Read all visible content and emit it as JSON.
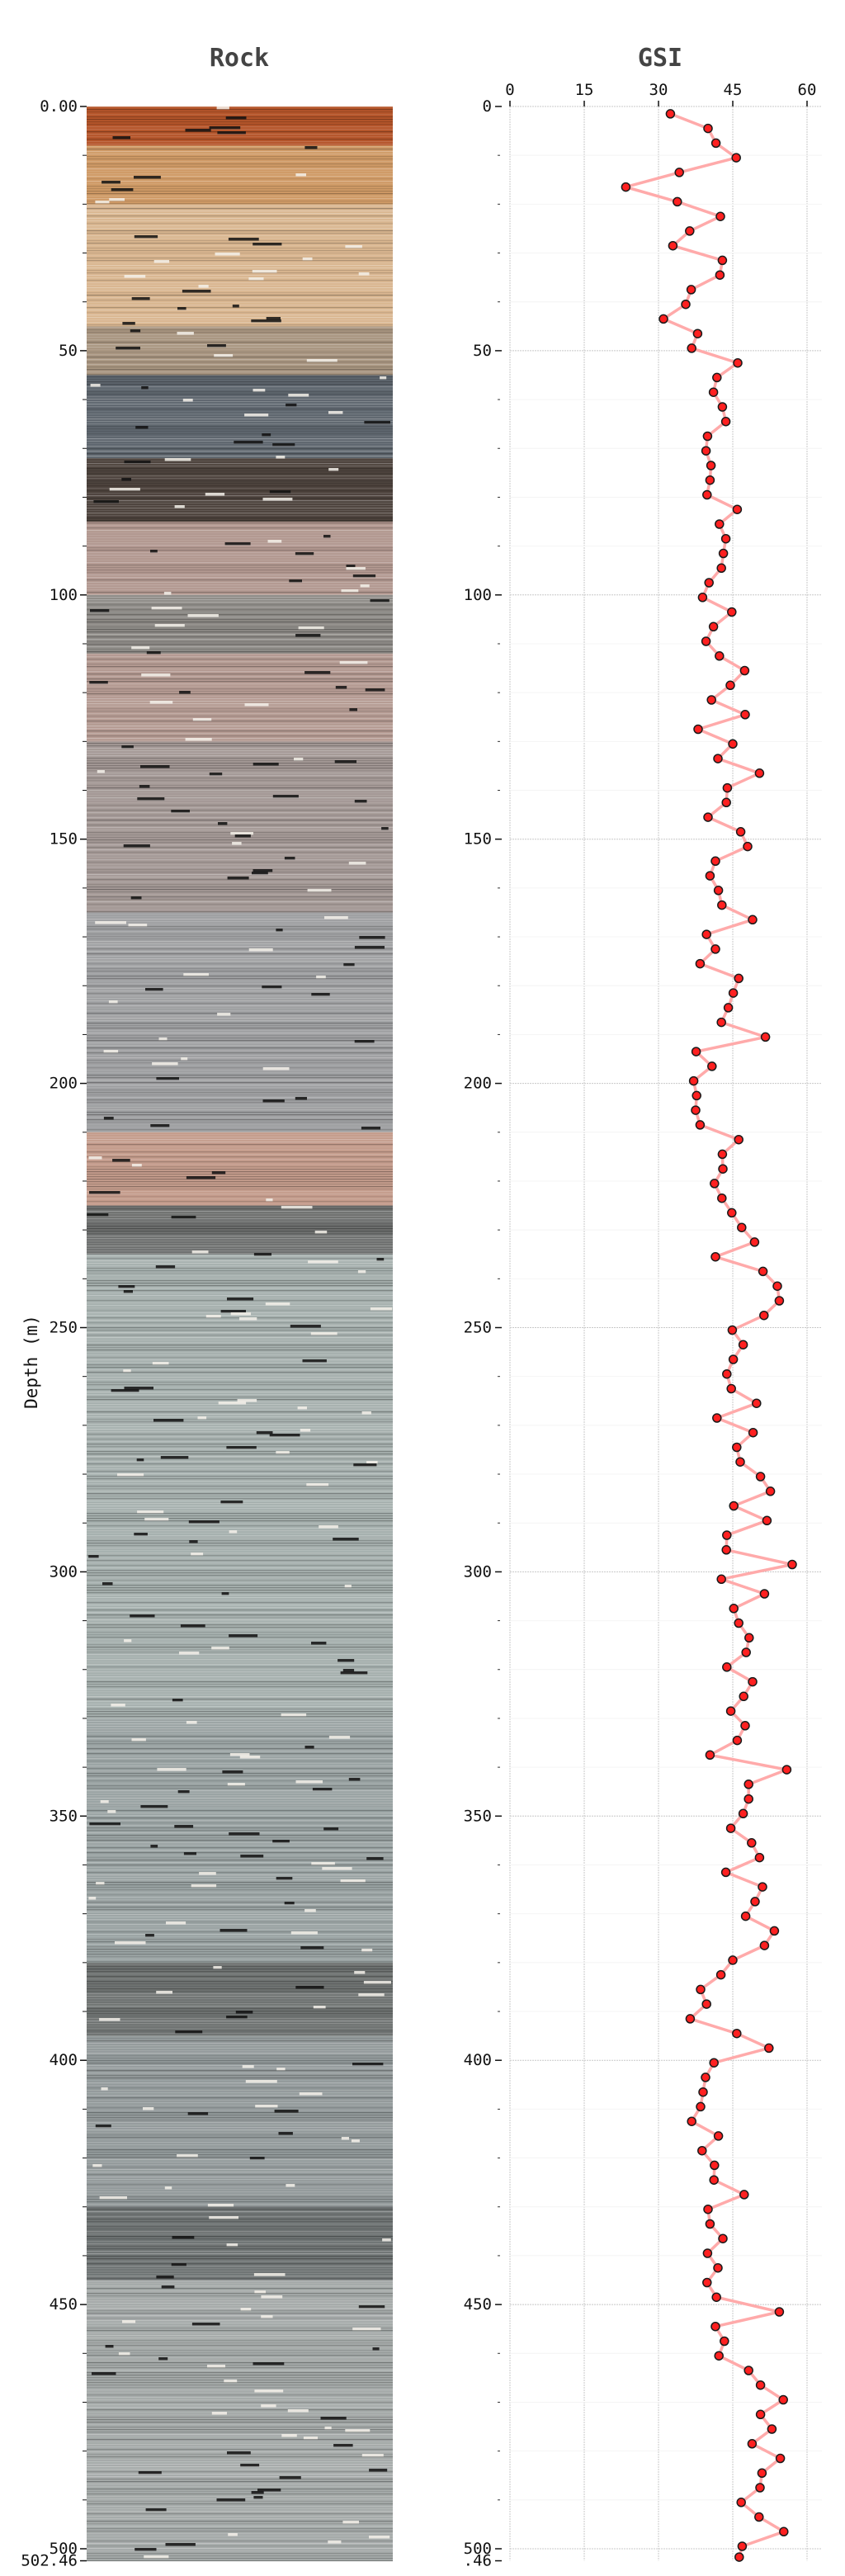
{
  "figure": {
    "left_panel_title": "Rock",
    "right_panel_title": "GSI",
    "ylabel": "Depth (m)"
  },
  "colors": {
    "line": "#ffaaaa",
    "marker_fill": "#ff2020",
    "marker_edge": "#1a1a1a",
    "grid": "#c8c8c8",
    "title": "#444444"
  },
  "rock_axis": {
    "tick_labels": [
      "0.00",
      "50",
      "100",
      "150",
      "200",
      "250",
      "300",
      "350",
      "400",
      "450",
      "500",
      "502.46"
    ],
    "tick_values": [
      0,
      50,
      100,
      150,
      200,
      250,
      300,
      350,
      400,
      450,
      500,
      502.46
    ],
    "minor_step": 10,
    "bands": [
      {
        "from": 0,
        "to": 8,
        "color": "#b5552a"
      },
      {
        "from": 8,
        "to": 20,
        "color": "#cf9a66"
      },
      {
        "from": 20,
        "to": 45,
        "color": "#d9b690"
      },
      {
        "from": 45,
        "to": 55,
        "color": "#a89580"
      },
      {
        "from": 55,
        "to": 72,
        "color": "#5e666e"
      },
      {
        "from": 72,
        "to": 85,
        "color": "#4d433d"
      },
      {
        "from": 85,
        "to": 100,
        "color": "#b29890"
      },
      {
        "from": 100,
        "to": 112,
        "color": "#8d8a86"
      },
      {
        "from": 112,
        "to": 130,
        "color": "#b49a92"
      },
      {
        "from": 130,
        "to": 165,
        "color": "#a49996"
      },
      {
        "from": 165,
        "to": 210,
        "color": "#9fa0a2"
      },
      {
        "from": 210,
        "to": 225,
        "color": "#c49c8c"
      },
      {
        "from": 225,
        "to": 235,
        "color": "#6e706f"
      },
      {
        "from": 235,
        "to": 330,
        "color": "#a6b0ae"
      },
      {
        "from": 330,
        "to": 380,
        "color": "#9aa3a3"
      },
      {
        "from": 380,
        "to": 395,
        "color": "#6f7372"
      },
      {
        "from": 395,
        "to": 430,
        "color": "#939a9b"
      },
      {
        "from": 430,
        "to": 445,
        "color": "#6f7474"
      },
      {
        "from": 445,
        "to": 502.46,
        "color": "#a5aaa9"
      }
    ]
  },
  "chart_data": {
    "type": "line",
    "title": "GSI",
    "xlabel": "",
    "ylabel": "Depth (m)",
    "xlim": [
      0,
      63
    ],
    "ylim": [
      502.46,
      0
    ],
    "x_ticks": [
      0,
      15,
      30,
      45,
      60
    ],
    "x_tick_position": "top",
    "y_ticks": [
      0,
      50,
      100,
      150,
      200,
      250,
      300,
      350,
      400,
      450,
      500,
      502.46
    ],
    "y_tick_labels": [
      "0",
      "50",
      "100",
      "150",
      "200",
      "250",
      "300",
      "350",
      "400",
      "450",
      "500",
      ".46"
    ],
    "grid": true,
    "legend": null,
    "series": [
      {
        "name": "GSI",
        "depth": [
          1.5,
          4.5,
          7.5,
          10.5,
          13.5,
          16.5,
          19.5,
          22.5,
          25.5,
          28.5,
          31.5,
          34.5,
          37.5,
          40.5,
          43.5,
          46.5,
          49.5,
          52.5,
          55.5,
          58.5,
          61.5,
          64.5,
          67.5,
          70.5,
          73.5,
          76.5,
          79.5,
          82.5,
          85.5,
          88.5,
          91.5,
          94.5,
          97.5,
          100.5,
          103.5,
          106.5,
          109.5,
          112.5,
          115.5,
          118.5,
          121.5,
          124.5,
          127.5,
          130.5,
          133.5,
          136.5,
          139.5,
          142.5,
          145.5,
          148.5,
          151.5,
          154.5,
          157.5,
          160.5,
          163.5,
          166.5,
          169.5,
          172.5,
          175.5,
          178.5,
          181.5,
          184.5,
          187.5,
          190.5,
          193.5,
          196.5,
          199.5,
          202.5,
          205.5,
          208.5,
          211.5,
          214.5,
          217.5,
          220.5,
          223.5,
          226.5,
          229.5,
          232.5,
          235.5,
          238.5,
          241.5,
          244.5,
          247.5,
          250.5,
          253.5,
          256.5,
          259.5,
          262.5,
          265.5,
          268.5,
          271.5,
          274.5,
          277.5,
          280.5,
          283.5,
          286.5,
          289.5,
          292.5,
          295.5,
          298.5,
          301.5,
          304.5,
          307.5,
          310.5,
          313.5,
          316.5,
          319.5,
          322.5,
          325.5,
          328.5,
          331.5,
          334.5,
          337.5,
          340.5,
          343.5,
          346.5,
          349.5,
          352.5,
          355.5,
          358.5,
          361.5,
          364.5,
          367.5,
          370.5,
          373.5,
          376.5,
          379.5,
          382.5,
          385.5,
          388.5,
          391.5,
          394.5,
          397.5,
          400.5,
          403.5,
          406.5,
          409.5,
          412.5,
          415.5,
          418.5,
          421.5,
          424.5,
          427.5,
          430.5,
          433.5,
          436.5,
          439.5,
          442.5,
          445.5,
          448.5,
          451.5,
          454.5,
          457.5,
          460.5,
          463.5,
          466.5,
          469.5,
          472.5,
          475.5,
          478.5,
          481.5,
          484.5,
          487.5,
          490.5,
          493.5,
          496.5,
          499.5,
          501.7
        ],
        "values": [
          32.4,
          40.0,
          41.6,
          45.7,
          34.2,
          23.4,
          33.8,
          42.5,
          36.3,
          32.9,
          42.9,
          42.4,
          36.6,
          35.5,
          31.0,
          37.9,
          36.7,
          46.0,
          41.8,
          41.1,
          42.9,
          43.6,
          39.9,
          39.6,
          40.6,
          40.4,
          39.8,
          45.9,
          42.3,
          43.6,
          43.1,
          42.7,
          40.2,
          38.9,
          44.8,
          41.1,
          39.6,
          42.3,
          47.4,
          44.5,
          40.7,
          47.5,
          38.0,
          45.0,
          42.0,
          50.4,
          43.9,
          43.7,
          40.0,
          46.6,
          48.0,
          41.5,
          40.4,
          42.1,
          42.8,
          49.0,
          39.7,
          41.5,
          38.4,
          46.2,
          45.1,
          44.1,
          42.7,
          51.6,
          37.6,
          40.8,
          37.1,
          37.7,
          37.5,
          38.4,
          46.2,
          42.9,
          43.0,
          41.3,
          42.8,
          44.8,
          46.8,
          49.4,
          41.5,
          51.1,
          54.0,
          54.4,
          51.3,
          44.9,
          47.1,
          45.1,
          43.8,
          44.7,
          49.8,
          41.8,
          49.1,
          45.8,
          46.5,
          50.6,
          52.6,
          45.2,
          51.9,
          43.8,
          43.7,
          57.0,
          42.7,
          51.4,
          45.2,
          46.2,
          48.3,
          47.7,
          43.8,
          49.0,
          47.2,
          44.6,
          47.5,
          45.9,
          40.4,
          55.9,
          48.2,
          48.2,
          47.1,
          44.6,
          48.8,
          50.4,
          43.6,
          51.0,
          49.5,
          47.6,
          53.4,
          51.4,
          45.0,
          42.6,
          38.5,
          39.7,
          36.4,
          45.8,
          52.3,
          41.2,
          39.5,
          39.0,
          38.5,
          36.7,
          42.1,
          38.8,
          41.3,
          41.2,
          47.3,
          40.0,
          40.4,
          43.0,
          39.9,
          42.0,
          39.8,
          41.7,
          54.4,
          41.5,
          43.3,
          42.2,
          48.2,
          50.6,
          55.2,
          50.6,
          52.9,
          48.9,
          54.6,
          50.9,
          50.5,
          46.7,
          50.3,
          55.3,
          46.9,
          46.3
        ]
      }
    ]
  }
}
